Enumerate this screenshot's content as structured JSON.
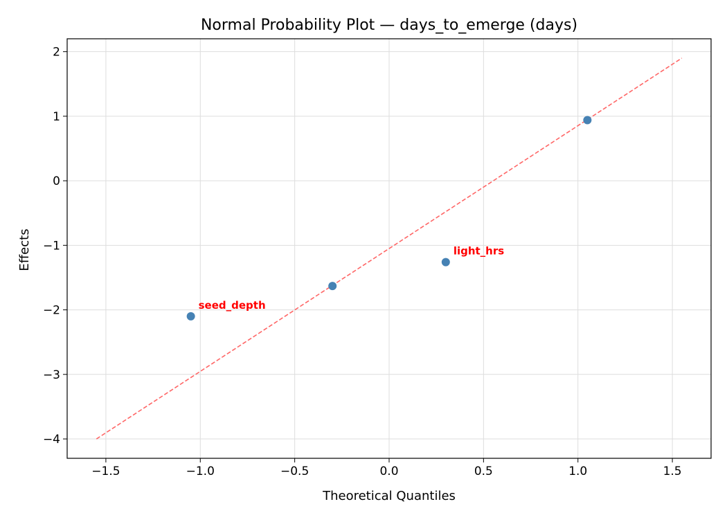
{
  "chart_data": {
    "type": "scatter",
    "title": "Normal Probability Plot — days_to_emerge (days)",
    "xlabel": "Theoretical Quantiles",
    "ylabel": "Effects",
    "xlim": [
      -1.705,
      1.705
    ],
    "ylim": [
      -4.3,
      2.2
    ],
    "xticks": [
      -1.5,
      -1.0,
      -0.5,
      0.0,
      0.5,
      1.0,
      1.5
    ],
    "xtick_labels": [
      "−1.5",
      "−1.0",
      "−0.5",
      "0.0",
      "0.5",
      "1.0",
      "1.5"
    ],
    "yticks": [
      -4,
      -3,
      -2,
      -1,
      0,
      1,
      2
    ],
    "ytick_labels": [
      "−4",
      "−3",
      "−2",
      "−1",
      "0",
      "1",
      "2"
    ],
    "grid": true,
    "points": [
      {
        "x": -1.05,
        "y": -2.1,
        "label": "seed_depth"
      },
      {
        "x": -0.3,
        "y": -1.63,
        "label": ""
      },
      {
        "x": 0.3,
        "y": -1.26,
        "label": "light_hrs"
      },
      {
        "x": 1.05,
        "y": 0.94,
        "label": ""
      }
    ],
    "reference_line": {
      "x": [
        -1.55,
        1.55
      ],
      "y": [
        -4.0,
        1.9
      ],
      "style": "dashed"
    },
    "colors": {
      "points": "#4682b4",
      "line": "#ff6666",
      "labels": "#ff0000",
      "grid": "#dddddd"
    }
  }
}
